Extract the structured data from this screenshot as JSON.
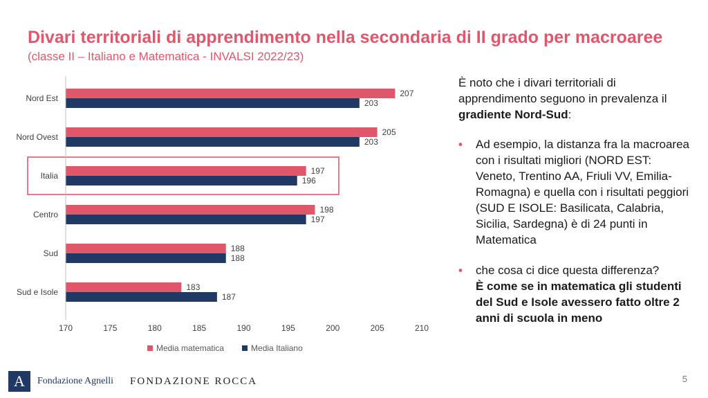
{
  "slide": {
    "title": "Divari territoriali di apprendimento nella secondaria di II grado per macroaree",
    "subtitle": "(classe II – Italiano e Matematica - INVALSI 2022/23)",
    "page_number": "5"
  },
  "chart_data": {
    "type": "bar",
    "orientation": "horizontal",
    "categories": [
      "Nord Est",
      "Nord Ovest",
      "Italia",
      "Centro",
      "Sud",
      "Sud e Isole"
    ],
    "series": [
      {
        "name": "Media matematica",
        "values": [
          207,
          205,
          197,
          198,
          188,
          183
        ],
        "color": "#e0566b"
      },
      {
        "name": "Media Italiano",
        "values": [
          203,
          203,
          196,
          197,
          188,
          187
        ],
        "color": "#1f3864"
      }
    ],
    "xlim": [
      170,
      210
    ],
    "x_ticks": [
      "170",
      "175",
      "180",
      "185",
      "190",
      "195",
      "200",
      "205",
      "210"
    ],
    "highlighted_category": "Italia",
    "highlight_color": "#e0566b",
    "legend_position": "bottom",
    "grid": false
  },
  "panel": {
    "intro_prefix": "È noto che i divari territoriali di apprendimento seguono in prevalenza il ",
    "intro_bold": "gradiente Nord-Sud",
    "intro_suffix": ":",
    "bullet_symbol": "•",
    "bullet1": "Ad esempio, la distanza fra la macroarea con i risultati migliori (NORD EST: Veneto, Trentino AA, Friuli VV, Emilia-Romagna) e quella con i risultati peggiori (SUD E ISOLE: Basilicata, Calabria, Sicilia, Sardegna) è di 24 punti in Matematica",
    "bullet2_text": "che cosa ci dice questa differenza?",
    "bullet2_bold": "È come se in matematica gli studenti del Sud e Isole avessero fatto oltre 2 anni di scuola in meno"
  },
  "footer": {
    "logo_letter": "A",
    "logo1": "Fondazione Agnelli",
    "logo2": "FONDAZIONE ROCCA"
  }
}
